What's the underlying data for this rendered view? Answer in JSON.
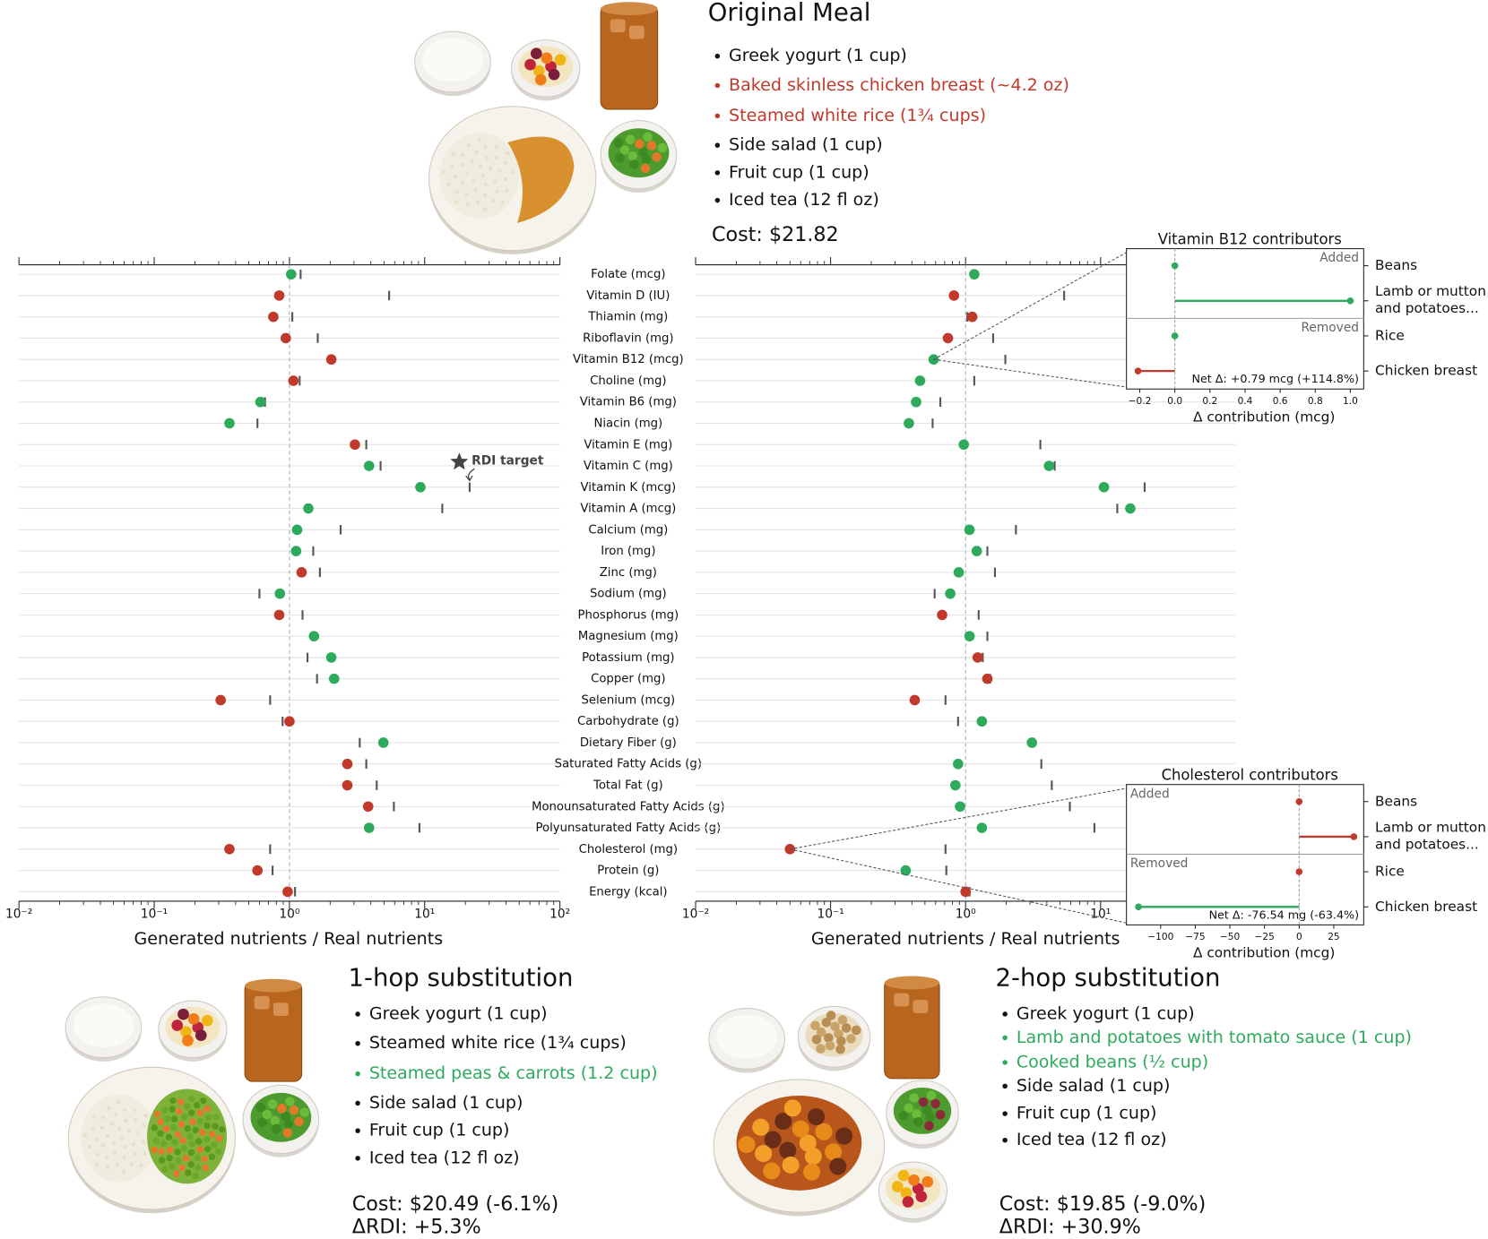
{
  "meals": {
    "original": {
      "title": "Original Meal",
      "items": [
        {
          "text": "Greek yogurt (1 cup)",
          "color": "#111111"
        },
        {
          "text": "Baked skinless chicken breast (~4.2 oz)",
          "color": "#c0392b"
        },
        {
          "text": "Steamed white rice (1¾ cups)",
          "color": "#c0392b"
        },
        {
          "text": "Side salad (1 cup)",
          "color": "#111111"
        },
        {
          "text": "Fruit cup (1 cup)",
          "color": "#111111"
        },
        {
          "text": "Iced tea (12 fl oz)",
          "color": "#111111"
        }
      ],
      "cost": "Cost: $21.82"
    },
    "hop1": {
      "title": "1-hop substitution",
      "items": [
        {
          "text": "Greek yogurt (1 cup)",
          "color": "#111111"
        },
        {
          "text": "Steamed white rice (1¾ cups)",
          "color": "#111111"
        },
        {
          "text": "Steamed peas & carrots (1.2 cup)",
          "color": "#2eaa5c"
        },
        {
          "text": "Side salad (1 cup)",
          "color": "#111111"
        },
        {
          "text": "Fruit cup (1 cup)",
          "color": "#111111"
        },
        {
          "text": "Iced tea (12 fl oz)",
          "color": "#111111"
        }
      ],
      "cost": "Cost: $20.49 (-6.1%)",
      "rdi": "ΔRDI: +5.3%"
    },
    "hop2": {
      "title": "2-hop substitution",
      "items": [
        {
          "text": "Greek yogurt (1 cup)",
          "color": "#111111"
        },
        {
          "text": "Lamb and potatoes with tomato sauce (1 cup)",
          "color": "#2eaa5c"
        },
        {
          "text": "Cooked beans (½ cup)",
          "color": "#2eaa5c"
        },
        {
          "text": "Side salad (1 cup)",
          "color": "#111111"
        },
        {
          "text": "Fruit cup (1 cup)",
          "color": "#111111"
        },
        {
          "text": "Iced tea (12 fl oz)",
          "color": "#111111"
        }
      ],
      "cost": "Cost: $19.85 (-9.0%)",
      "rdi": "ΔRDI: +30.9%"
    }
  },
  "chart_data": [
    {
      "type": "dot",
      "xlabel": "Generated nutrients / Real nutrients",
      "log_x": true,
      "xlim": [
        0.01,
        100
      ],
      "xticks": [
        {
          "value": 0.01,
          "label": "10⁻²"
        },
        {
          "value": 0.1,
          "label": "10⁻¹"
        },
        {
          "value": 1,
          "label": "10⁰"
        },
        {
          "value": 10,
          "label": "10¹"
        },
        {
          "value": 100,
          "label": "10²"
        }
      ],
      "categories": [
        "Folate (mcg)",
        "Vitamin D (IU)",
        "Thiamin (mg)",
        "Riboflavin (mg)",
        "Vitamin B12 (mcg)",
        "Choline (mg)",
        "Vitamin B6 (mg)",
        "Niacin (mg)",
        "Vitamin E (mg)",
        "Vitamin C (mg)",
        "Vitamin K (mcg)",
        "Vitamin A (mcg)",
        "Calcium (mg)",
        "Iron (mg)",
        "Zinc (mg)",
        "Sodium (mg)",
        "Phosphorus (mg)",
        "Magnesium (mg)",
        "Potassium (mg)",
        "Copper (mg)",
        "Selenium (mcg)",
        "Carbohydrate (g)",
        "Dietary Fiber (g)",
        "Saturated Fatty Acids (g)",
        "Total Fat (g)",
        "Monounsaturated Fatty Acids (g)",
        "Polyunsaturated Fatty Acids (g)",
        "Cholesterol (mg)",
        "Protein (g)",
        "Energy (kcal)"
      ],
      "values": [
        1.03,
        0.84,
        0.76,
        0.94,
        2.04,
        1.07,
        0.61,
        0.36,
        3.05,
        3.88,
        9.3,
        1.38,
        1.14,
        1.12,
        1.23,
        0.85,
        0.84,
        1.52,
        2.04,
        2.14,
        0.31,
        1.0,
        4.95,
        2.68,
        2.68,
        3.82,
        3.88,
        0.36,
        0.58,
        0.97
      ],
      "targets": [
        1.21,
        5.46,
        1.05,
        1.62,
        2.0,
        1.19,
        0.66,
        0.58,
        3.7,
        4.72,
        21.5,
        13.5,
        2.39,
        1.5,
        1.68,
        0.6,
        1.25,
        1.47,
        1.36,
        1.6,
        0.72,
        0.89,
        3.31,
        3.7,
        4.42,
        5.92,
        9.15,
        0.72,
        0.75,
        1.1
      ],
      "colors": [
        "#2eaa5c",
        "#c0392b",
        "#c0392b",
        "#c0392b",
        "#c0392b",
        "#c0392b",
        "#2eaa5c",
        "#2eaa5c",
        "#c0392b",
        "#2eaa5c",
        "#2eaa5c",
        "#2eaa5c",
        "#2eaa5c",
        "#2eaa5c",
        "#c0392b",
        "#2eaa5c",
        "#c0392b",
        "#2eaa5c",
        "#2eaa5c",
        "#2eaa5c",
        "#c0392b",
        "#c0392b",
        "#2eaa5c",
        "#c0392b",
        "#c0392b",
        "#c0392b",
        "#2eaa5c",
        "#c0392b",
        "#c0392b",
        "#c0392b"
      ],
      "annotation": "RDI target"
    },
    {
      "type": "dot",
      "xlabel": "Generated nutrients / Real nutrients",
      "log_x": true,
      "xlim": [
        0.01,
        100
      ],
      "xticks": [
        {
          "value": 0.01,
          "label": "10⁻²"
        },
        {
          "value": 0.1,
          "label": "10⁻¹"
        },
        {
          "value": 1,
          "label": "10⁰"
        },
        {
          "value": 10,
          "label": "10¹"
        }
      ],
      "values": [
        1.16,
        0.82,
        1.12,
        0.74,
        0.58,
        0.46,
        0.43,
        0.38,
        0.97,
        4.15,
        10.6,
        16.6,
        1.07,
        1.21,
        0.89,
        0.77,
        0.67,
        1.07,
        1.23,
        1.45,
        0.42,
        1.32,
        3.1,
        0.88,
        0.84,
        0.91,
        1.32,
        0.05,
        0.36,
        1.0
      ],
      "targets": [
        1.12,
        5.37,
        1.03,
        1.6,
        1.97,
        1.16,
        0.65,
        0.57,
        3.58,
        4.57,
        21.2,
        13.3,
        2.36,
        1.45,
        1.65,
        0.59,
        1.25,
        1.45,
        1.34,
        1.52,
        0.71,
        0.88,
        3.2,
        3.64,
        4.35,
        5.92,
        9.0,
        0.71,
        0.72,
        1.07
      ],
      "colors": [
        "#2eaa5c",
        "#c0392b",
        "#c0392b",
        "#c0392b",
        "#2eaa5c",
        "#2eaa5c",
        "#2eaa5c",
        "#2eaa5c",
        "#2eaa5c",
        "#2eaa5c",
        "#2eaa5c",
        "#2eaa5c",
        "#2eaa5c",
        "#2eaa5c",
        "#2eaa5c",
        "#2eaa5c",
        "#c0392b",
        "#2eaa5c",
        "#c0392b",
        "#c0392b",
        "#c0392b",
        "#2eaa5c",
        "#2eaa5c",
        "#2eaa5c",
        "#2eaa5c",
        "#2eaa5c",
        "#2eaa5c",
        "#c0392b",
        "#2eaa5c",
        "#c0392b"
      ]
    },
    {
      "type": "lollipop",
      "title": "Vitamin B12 contributors",
      "xlabel": "Δ contribution (mcg)",
      "categories": [
        "Beans",
        "Lamb or mutton\nand  potatoes...",
        "Rice",
        "Chicken breast"
      ],
      "values": [
        0,
        1.0,
        0,
        -0.21
      ],
      "colors": [
        "#2eaa5c",
        "#2eaa5c",
        "#2eaa5c",
        "#c0392b"
      ],
      "group_labels": [
        "Added",
        "Removed"
      ],
      "group_corner": "right",
      "net_label": "Net Δ: +0.79 mcg (+114.8%)",
      "xlim": [
        -0.276,
        1.076
      ],
      "xticks": [
        {
          "value": -0.2,
          "label": "−0.2"
        },
        {
          "value": 0,
          "label": "0.0"
        },
        {
          "value": 0.2,
          "label": "0.2"
        },
        {
          "value": 0.4,
          "label": "0.4"
        },
        {
          "value": 0.6,
          "label": "0.6"
        },
        {
          "value": 0.8,
          "label": "0.8"
        },
        {
          "value": 1.0,
          "label": "1.0"
        }
      ]
    },
    {
      "type": "lollipop",
      "title": "Cholesterol contributors",
      "xlabel": "Δ contribution (mcg)",
      "categories": [
        "Beans",
        "Lamb or mutton\nand  potatoes...",
        "Rice",
        "Chicken breast"
      ],
      "values": [
        0,
        39.5,
        0,
        -116.0
      ],
      "colors": [
        "#c0392b",
        "#c0392b",
        "#c0392b",
        "#2eaa5c"
      ],
      "group_labels": [
        "Added",
        "Removed"
      ],
      "group_corner": "left",
      "net_label": "Net Δ: -76.54 mg (-63.4%)",
      "xlim": [
        -124.7,
        46.6
      ],
      "xticks": [
        {
          "value": -100,
          "label": "−100"
        },
        {
          "value": -75,
          "label": "−75"
        },
        {
          "value": -50,
          "label": "−50"
        },
        {
          "value": -25,
          "label": "−25"
        },
        0,
        25
      ]
    }
  ]
}
